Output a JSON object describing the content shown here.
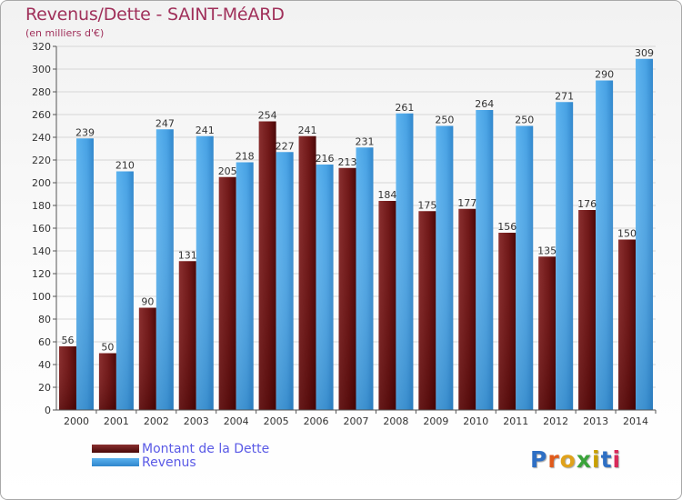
{
  "header": {
    "title": "Revenus/Dette - SAINT-MéARD",
    "subtitle": "(en milliers d'€)"
  },
  "legend": {
    "debt_label": "Montant de la Dette",
    "revenue_label": "Revenus"
  },
  "logo": {
    "text": "Proxiti",
    "letter_colors": [
      "#2e6fc4",
      "#e05a1b",
      "#e0a21b",
      "#3aa33a",
      "#c8a000",
      "#2e6fc4",
      "#d82a5a"
    ]
  },
  "chart_data": {
    "type": "bar",
    "categories": [
      "2000",
      "2001",
      "2002",
      "2003",
      "2004",
      "2005",
      "2006",
      "2007",
      "2008",
      "2009",
      "2010",
      "2011",
      "2012",
      "2013",
      "2014"
    ],
    "series": [
      {
        "name": "Montant de la Dette",
        "color": "#7a1e1e",
        "values": [
          56,
          50,
          90,
          131,
          205,
          254,
          241,
          213,
          184,
          175,
          177,
          156,
          135,
          176,
          150
        ]
      },
      {
        "name": "Revenus",
        "color": "#4aa3e6",
        "values": [
          239,
          210,
          247,
          241,
          218,
          227,
          216,
          231,
          261,
          250,
          264,
          250,
          271,
          290,
          309
        ]
      }
    ],
    "ylim": [
      0,
      320
    ],
    "ytick_step": 20,
    "grid": true,
    "legend_position": "bottom-left"
  }
}
